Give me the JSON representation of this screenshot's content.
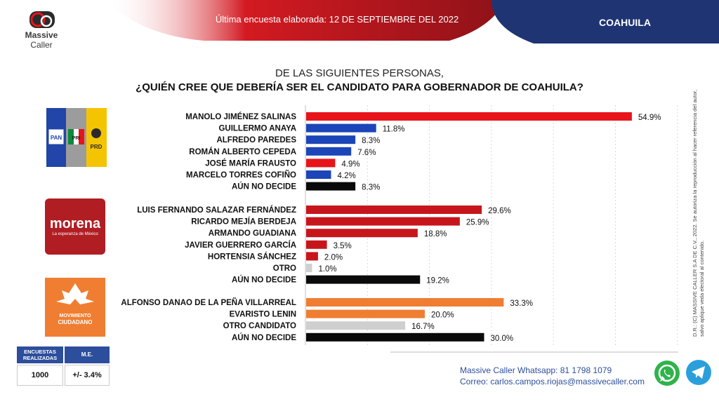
{
  "header": {
    "brand_name": "Massive",
    "brand_sub": "Caller",
    "last_survey": "Última encuesta elaborada: 12 DE SEPTIEMBRE DEL 2022",
    "state": "COAHUILA"
  },
  "question": {
    "line1": "DE LAS SIGUIENTES PERSONAS,",
    "line2": "¿QUIÉN CREE QUE DEBERÍA SER EL CANDIDATO PARA GOBERNADOR DE COAHUILA?"
  },
  "side_note": "D.R.: (C) MASSIVE CALLER S.A DE C.V., 2022. Se autoriza la reproducción al hacer referencia del autor, salvo aplique veda electoral al contenido.",
  "party_logos": {
    "pan": "PAN",
    "pri": "PRI",
    "prd": "PRD",
    "morena": "morena",
    "morena_tagline": "La esperanza de México",
    "mc_line1": "MOVIMIENTO",
    "mc_line2": "CIUDADANO"
  },
  "colors": {
    "red": "#e8141b",
    "blue": "#1b45b8",
    "black": "#0a0a0a",
    "dark_red": "#c7151c",
    "gray": "#cfcfcf",
    "orange": "#ef7e32",
    "header_red": "#c0161c",
    "header_navy": "#1f3473"
  },
  "chart_data": {
    "type": "bar",
    "orientation": "horizontal",
    "value_suffix": "%",
    "xlim": [
      0,
      60
    ],
    "grid": true,
    "groups": [
      {
        "party_logo": "PAN-PRI-PRD",
        "bars": [
          {
            "label": "MANOLO JIMÉNEZ SALINAS",
            "value": 54.9,
            "display": "54.9%",
            "color": "#e8141b"
          },
          {
            "label": "GUILLERMO ANAYA",
            "value": 11.8,
            "display": "11.8%",
            "color": "#1b45b8"
          },
          {
            "label": "ALFREDO PAREDES",
            "value": 8.3,
            "display": "8.3%",
            "color": "#1b45b8"
          },
          {
            "label": "ROMÁN ALBERTO CEPEDA",
            "value": 7.6,
            "display": "7.6%",
            "color": "#1b45b8"
          },
          {
            "label": "JOSÉ MARÍA FRAUSTO",
            "value": 4.9,
            "display": "4.9%",
            "color": "#e8141b"
          },
          {
            "label": "MARCELO TORRES COFIÑO",
            "value": 4.2,
            "display": "4.2%",
            "color": "#1b45b8"
          },
          {
            "label": "AÚN NO DECIDE",
            "value": 8.3,
            "display": "8.3%",
            "color": "#0a0a0a"
          }
        ]
      },
      {
        "party_logo": "Morena",
        "bars": [
          {
            "label": "LUIS FERNANDO SALAZAR FERNÁNDEZ",
            "value": 29.6,
            "display": "29.6%",
            "color": "#c7151c"
          },
          {
            "label": "RICARDO MEJÍA BERDEJA",
            "value": 25.9,
            "display": "25.9%",
            "color": "#c7151c"
          },
          {
            "label": "ARMANDO GUADIANA",
            "value": 18.8,
            "display": "18.8%",
            "color": "#c7151c"
          },
          {
            "label": "JAVIER GUERRERO GARCÍA",
            "value": 3.5,
            "display": "3.5%",
            "color": "#c7151c"
          },
          {
            "label": "HORTENSIA SÁNCHEZ",
            "value": 2.0,
            "display": "2.0%",
            "color": "#c7151c"
          },
          {
            "label": "OTRO",
            "value": 1.0,
            "display": "1.0%",
            "color": "#cfcfcf"
          },
          {
            "label": "AÚN NO DECIDE",
            "value": 19.2,
            "display": "19.2%",
            "color": "#0a0a0a"
          }
        ]
      },
      {
        "party_logo": "Movimiento Ciudadano",
        "bars": [
          {
            "label": "ALFONSO DANAO DE LA PEÑA VILLARREAL",
            "value": 33.3,
            "display": "33.3%",
            "color": "#ef7e32"
          },
          {
            "label": "EVARISTO LENIN",
            "value": 20.0,
            "display": "20.0%",
            "color": "#ef7e32"
          },
          {
            "label": "OTRO CANDIDATO",
            "value": 16.7,
            "display": "16.7%",
            "color": "#cfcfcf"
          },
          {
            "label": "AÚN NO DECIDE",
            "value": 30.0,
            "display": "30.0%",
            "color": "#0a0a0a"
          }
        ]
      }
    ]
  },
  "stats": {
    "surveys_label": "ENCUESTAS REALIZADAS",
    "me_label": "M.E.",
    "surveys_value": "1000",
    "me_value": "+/- 3.4%"
  },
  "contact": {
    "whatsapp_label": "Massive Caller Whatsapp:",
    "whatsapp_number": "81 1798 1079",
    "email_label": "Correo:",
    "email": "carlos.campos.riojas@massivecaller.com"
  }
}
